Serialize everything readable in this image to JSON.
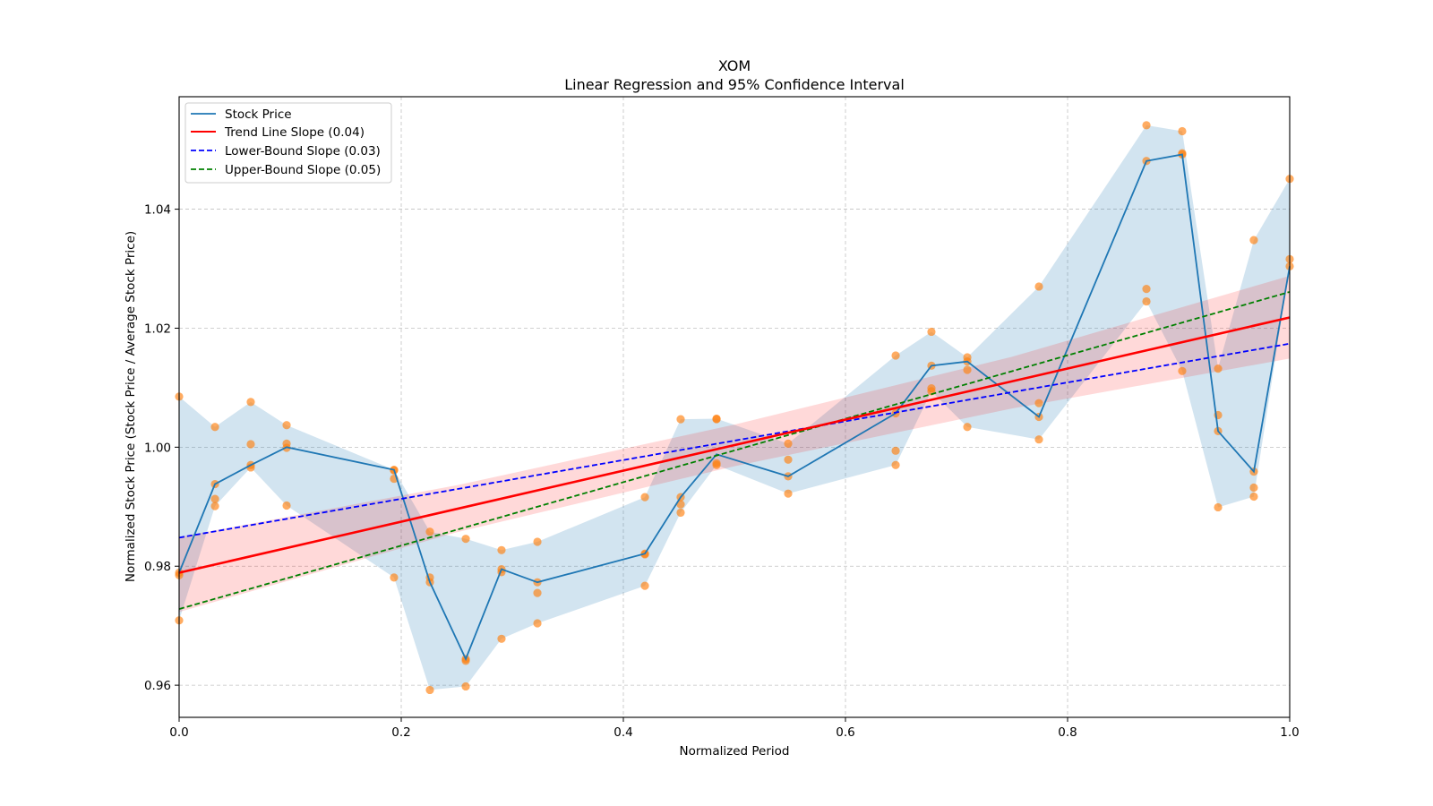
{
  "chart_data": {
    "type": "line",
    "title": "XOM",
    "subtitle": "Linear Regression and 95% Confidence Interval",
    "xlabel": "Normalized Period",
    "ylabel": "Normalized Stock Price (Stock Price / Average Stock Price)",
    "xlim": [
      0.0,
      1.0
    ],
    "ylim": [
      0.9546,
      1.0589
    ],
    "grid": true,
    "legend_position": "top-left",
    "x_ticks": [
      "0.0",
      "0.2",
      "0.4",
      "0.6",
      "0.8",
      "1.0"
    ],
    "x_tick_values": [
      0.0,
      0.2,
      0.4,
      0.6,
      0.8,
      1.0
    ],
    "y_ticks": [
      "0.96",
      "0.98",
      "1.00",
      "1.02",
      "1.04"
    ],
    "y_tick_values": [
      0.96,
      0.98,
      1.0,
      1.02,
      1.04
    ],
    "legend": [
      {
        "label": "Stock Price",
        "color": "#1f77b4",
        "style": "solid"
      },
      {
        "label": "Trend Line Slope (0.04)",
        "color": "#ff0000",
        "style": "solid"
      },
      {
        "label": "Lower-Bound Slope (0.03)",
        "color": "#0000ff",
        "style": "dashed"
      },
      {
        "label": "Upper-Bound Slope (0.05)",
        "color": "#008000",
        "style": "dashed"
      }
    ],
    "x": [
      0.0,
      0.0323,
      0.0645,
      0.0968,
      0.1935,
      0.2258,
      0.2581,
      0.2903,
      0.3226,
      0.4194,
      0.4516,
      0.4839,
      0.5484,
      0.6452,
      0.6774,
      0.7097,
      0.7742,
      0.871,
      0.9032,
      0.9355,
      0.9677,
      1.0
    ],
    "series": [
      {
        "name": "Stock Price",
        "color": "#1f77b4",
        "values": [
          0.9789,
          0.9938,
          0.997,
          1.0,
          0.9962,
          0.9773,
          0.9644,
          0.9795,
          0.9773,
          0.9821,
          0.9916,
          0.9988,
          0.9951,
          1.0057,
          1.0137,
          1.0144,
          1.0051,
          1.0481,
          1.0492,
          1.0027,
          0.9959,
          1.0304
        ]
      }
    ],
    "range_band": {
      "color": "#1f77b4",
      "high": [
        1.0085,
        1.0034,
        1.0076,
        1.0037,
        0.9962,
        0.9858,
        0.9846,
        0.9827,
        0.9841,
        0.9916,
        1.0047,
        1.0048,
        1.0006,
        1.0154,
        1.0194,
        1.0151,
        1.027,
        1.0541,
        1.0531,
        1.0133,
        1.0348,
        1.0451
      ],
      "low": [
        0.9709,
        0.9901,
        0.9966,
        0.9902,
        0.9781,
        0.9592,
        0.9598,
        0.9678,
        0.9704,
        0.9767,
        0.989,
        0.997,
        0.9922,
        0.997,
        1.0094,
        1.0034,
        1.0013,
        1.0245,
        1.0128,
        0.9899,
        0.9917,
        1.0304
      ]
    },
    "scatter": {
      "color": "#ff7f0e",
      "points": [
        [
          0.0,
          1.0085
        ],
        [
          0.0,
          0.9789
        ],
        [
          0.0,
          0.9785
        ],
        [
          0.0,
          0.9709
        ],
        [
          0.0323,
          1.0034
        ],
        [
          0.0323,
          0.9938
        ],
        [
          0.0323,
          0.9913
        ],
        [
          0.0323,
          0.9901
        ],
        [
          0.0645,
          1.0076
        ],
        [
          0.0645,
          1.0005
        ],
        [
          0.0645,
          0.997
        ],
        [
          0.0645,
          0.9966
        ],
        [
          0.0968,
          1.0037
        ],
        [
          0.0968,
          1.0006
        ],
        [
          0.0968,
          0.9999
        ],
        [
          0.0968,
          0.9902
        ],
        [
          0.1935,
          0.9962
        ],
        [
          0.1935,
          0.9961
        ],
        [
          0.1935,
          0.9947
        ],
        [
          0.1935,
          0.9781
        ],
        [
          0.2258,
          0.9858
        ],
        [
          0.2258,
          0.9781
        ],
        [
          0.2258,
          0.9773
        ],
        [
          0.2258,
          0.9592
        ],
        [
          0.2581,
          0.9846
        ],
        [
          0.2581,
          0.9644
        ],
        [
          0.2581,
          0.9641
        ],
        [
          0.2581,
          0.9598
        ],
        [
          0.2903,
          0.9827
        ],
        [
          0.2903,
          0.9795
        ],
        [
          0.2903,
          0.979
        ],
        [
          0.2903,
          0.9678
        ],
        [
          0.3226,
          0.9841
        ],
        [
          0.3226,
          0.9773
        ],
        [
          0.3226,
          0.9755
        ],
        [
          0.3226,
          0.9704
        ],
        [
          0.4194,
          0.9916
        ],
        [
          0.4194,
          0.9821
        ],
        [
          0.4194,
          0.982
        ],
        [
          0.4194,
          0.9767
        ],
        [
          0.4516,
          1.0047
        ],
        [
          0.4516,
          0.9916
        ],
        [
          0.4516,
          0.9904
        ],
        [
          0.4516,
          0.989
        ],
        [
          0.4839,
          1.0048
        ],
        [
          0.4839,
          1.0047
        ],
        [
          0.4839,
          0.9973
        ],
        [
          0.4839,
          0.997
        ],
        [
          0.5484,
          1.0006
        ],
        [
          0.5484,
          0.9979
        ],
        [
          0.5484,
          0.9951
        ],
        [
          0.5484,
          0.9922
        ],
        [
          0.6452,
          1.0154
        ],
        [
          0.6452,
          1.0057
        ],
        [
          0.6452,
          0.9994
        ],
        [
          0.6452,
          0.997
        ],
        [
          0.6774,
          1.0194
        ],
        [
          0.6774,
          1.0137
        ],
        [
          0.6774,
          1.0099
        ],
        [
          0.6774,
          1.0094
        ],
        [
          0.7097,
          1.0151
        ],
        [
          0.7097,
          1.0144
        ],
        [
          0.7097,
          1.013
        ],
        [
          0.7097,
          1.0034
        ],
        [
          0.7742,
          1.027
        ],
        [
          0.7742,
          1.0074
        ],
        [
          0.7742,
          1.0051
        ],
        [
          0.7742,
          1.0013
        ],
        [
          0.871,
          1.0541
        ],
        [
          0.871,
          1.0481
        ],
        [
          0.871,
          1.0266
        ],
        [
          0.871,
          1.0245
        ],
        [
          0.9032,
          1.0531
        ],
        [
          0.9032,
          1.0494
        ],
        [
          0.9032,
          1.0492
        ],
        [
          0.9032,
          1.0128
        ],
        [
          0.9355,
          1.0132
        ],
        [
          0.9355,
          1.0054
        ],
        [
          0.9355,
          1.0027
        ],
        [
          0.9355,
          0.9899
        ],
        [
          0.9677,
          1.0348
        ],
        [
          0.9677,
          0.9959
        ],
        [
          0.9677,
          0.9932
        ],
        [
          0.9677,
          0.9917
        ],
        [
          1.0,
          1.0451
        ],
        [
          1.0,
          1.0316
        ],
        [
          1.0,
          1.0304
        ]
      ]
    },
    "trend_line": {
      "label": "Trend Line Slope (0.04)",
      "color": "#ff0000",
      "start": 0.9789,
      "end": 1.0218
    },
    "lower_bound_line": {
      "label": "Lower-Bound Slope (0.03)",
      "color": "#0000ff",
      "start": 0.9848,
      "end": 1.0174
    },
    "upper_bound_line": {
      "label": "Upper-Bound Slope (0.05)",
      "color": "#008000",
      "start": 0.9728,
      "end": 1.0261
    },
    "confidence_band": {
      "color": "#ff0000",
      "x": [
        0.0,
        0.25,
        0.5,
        0.75,
        1.0
      ],
      "upper": [
        0.9849,
        0.9936,
        1.0038,
        1.0152,
        1.0288
      ],
      "lower": [
        0.9723,
        0.9857,
        0.9968,
        1.0065,
        1.0149
      ]
    }
  }
}
